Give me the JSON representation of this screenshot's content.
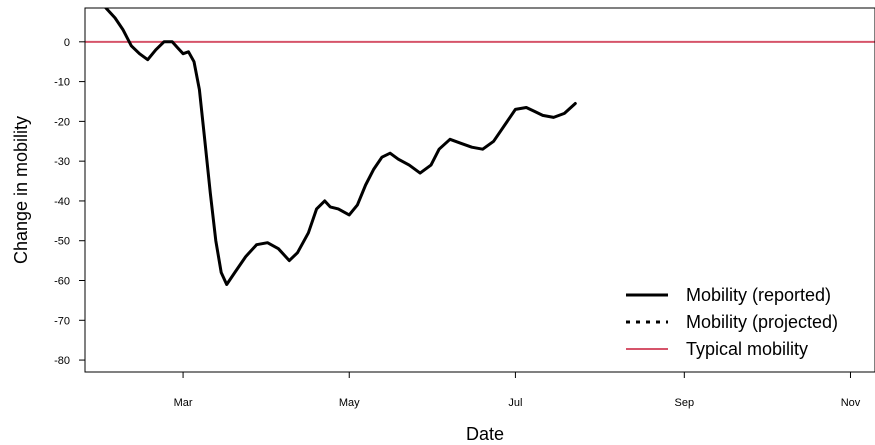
{
  "chart_data": {
    "type": "line",
    "title": "",
    "xlabel": "Date",
    "ylabel": "Change in mobility",
    "ylim": [
      -83,
      8.5
    ],
    "yticks": [
      0,
      -10,
      -20,
      -30,
      -40,
      -50,
      -60,
      -70,
      -80
    ],
    "xlim": [
      "2020-01-25",
      "2020-11-10"
    ],
    "xticks": [
      {
        "date": "2020-03-01",
        "label": "Mar"
      },
      {
        "date": "2020-05-01",
        "label": "May"
      },
      {
        "date": "2020-07-01",
        "label": "Jul"
      },
      {
        "date": "2020-09-01",
        "label": "Sep"
      },
      {
        "date": "2020-11-01",
        "label": "Nov"
      }
    ],
    "typical_level": 0,
    "legend_position": "bottom-right",
    "series": [
      {
        "name": "Mobility (reported)",
        "style": "solid",
        "color": "#000000",
        "points": [
          [
            "2020-02-01",
            9
          ],
          [
            "2020-02-05",
            6
          ],
          [
            "2020-02-08",
            3
          ],
          [
            "2020-02-11",
            -1
          ],
          [
            "2020-02-14",
            -3
          ],
          [
            "2020-02-17",
            -4.5
          ],
          [
            "2020-02-20",
            -2
          ],
          [
            "2020-02-23",
            0
          ],
          [
            "2020-02-26",
            0
          ],
          [
            "2020-02-28",
            -1.5
          ],
          [
            "2020-03-01",
            -3
          ],
          [
            "2020-03-03",
            -2.5
          ],
          [
            "2020-03-05",
            -5
          ],
          [
            "2020-03-07",
            -12
          ],
          [
            "2020-03-09",
            -25
          ],
          [
            "2020-03-11",
            -38
          ],
          [
            "2020-03-13",
            -50
          ],
          [
            "2020-03-15",
            -58
          ],
          [
            "2020-03-17",
            -61
          ],
          [
            "2020-03-20",
            -58
          ],
          [
            "2020-03-24",
            -54
          ],
          [
            "2020-03-28",
            -51
          ],
          [
            "2020-04-01",
            -50.5
          ],
          [
            "2020-04-05",
            -52
          ],
          [
            "2020-04-09",
            -55
          ],
          [
            "2020-04-12",
            -53
          ],
          [
            "2020-04-16",
            -48
          ],
          [
            "2020-04-19",
            -42
          ],
          [
            "2020-04-22",
            -40
          ],
          [
            "2020-04-24",
            -41.5
          ],
          [
            "2020-04-27",
            -42
          ],
          [
            "2020-05-01",
            -43.5
          ],
          [
            "2020-05-04",
            -41
          ],
          [
            "2020-05-07",
            -36
          ],
          [
            "2020-05-10",
            -32
          ],
          [
            "2020-05-13",
            -29
          ],
          [
            "2020-05-16",
            -28
          ],
          [
            "2020-05-19",
            -29.5
          ],
          [
            "2020-05-23",
            -31
          ],
          [
            "2020-05-27",
            -33
          ],
          [
            "2020-05-31",
            -31
          ],
          [
            "2020-06-03",
            -27
          ],
          [
            "2020-06-07",
            -24.5
          ],
          [
            "2020-06-11",
            -25.5
          ],
          [
            "2020-06-15",
            -26.5
          ],
          [
            "2020-06-19",
            -27
          ],
          [
            "2020-06-23",
            -25
          ],
          [
            "2020-06-27",
            -21
          ],
          [
            "2020-07-01",
            -17
          ],
          [
            "2020-07-05",
            -16.5
          ],
          [
            "2020-07-08",
            -17.5
          ],
          [
            "2020-07-11",
            -18.5
          ],
          [
            "2020-07-15",
            -19
          ],
          [
            "2020-07-19",
            -18
          ],
          [
            "2020-07-23",
            -15.5
          ]
        ]
      },
      {
        "name": "Mobility (projected)",
        "style": "dotted",
        "color": "#000000",
        "points": []
      },
      {
        "name": "Typical mobility",
        "style": "solid",
        "color": "#d6546a",
        "points": []
      }
    ]
  }
}
